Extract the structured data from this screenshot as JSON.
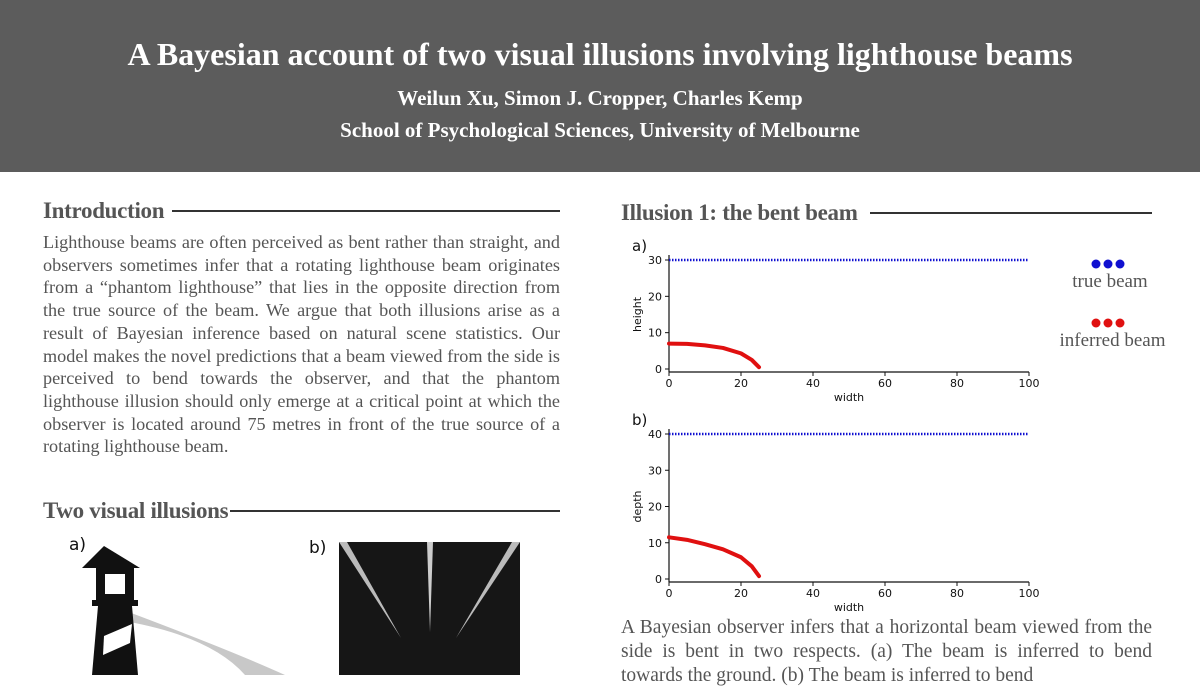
{
  "header": {
    "title": "A Bayesian account of two visual illusions involving lighthouse beams",
    "authors": "Weilun Xu, Simon J. Cropper, Charles Kemp",
    "affiliation": "School of Psychological Sciences, University of Melbourne"
  },
  "intro": {
    "heading": "Introduction",
    "text": "Lighthouse beams are often perceived as bent rather than straight, and observers sometimes infer that a rotating lighthouse beam originates from a “phantom lighthouse” that lies in the opposite direction from the true source of the beam. We argue that both illusions arise as a result of Bayesian inference based on natural scene statistics. Our model makes the novel predictions that a beam viewed from the side is perceived to bend towards the observer, and that the phantom lighthouse illusion should only emerge at a critical point at which the observer is located around 75 metres in front of the true source of a rotating lighthouse beam."
  },
  "illusions": {
    "heading": "Two visual illusions",
    "panel_a": "a)",
    "panel_b": "b)"
  },
  "illusion1": {
    "heading": "Illusion 1: the bent beam",
    "caption": "A Bayesian observer infers that a horizontal beam viewed from the side is bent in two respects. (a) The beam is inferred to bend towards the ground. (b) The beam is inferred to bend"
  },
  "legend": {
    "true": "true beam",
    "inferred": "inferred beam"
  },
  "colors": {
    "true_beam": "#1010d0",
    "inferred_beam": "#e01010",
    "header_bg": "#5c5c5c"
  },
  "chart_data": [
    {
      "type": "line",
      "panel": "a)",
      "xlabel": "width",
      "ylabel": "height",
      "xlim": [
        0,
        100
      ],
      "ylim": [
        0,
        30
      ],
      "xticks": [
        0,
        20,
        40,
        60,
        80,
        100
      ],
      "yticks": [
        0,
        10,
        20,
        30
      ],
      "series": [
        {
          "name": "true beam",
          "style": "dotted",
          "x": [
            0,
            100
          ],
          "y": [
            30,
            30
          ]
        },
        {
          "name": "inferred beam",
          "x": [
            0,
            5,
            10,
            15,
            20,
            23,
            25
          ],
          "y": [
            7,
            6.9,
            6.5,
            5.8,
            4.3,
            2.5,
            0.5
          ]
        }
      ]
    },
    {
      "type": "line",
      "panel": "b)",
      "xlabel": "width",
      "ylabel": "depth",
      "xlim": [
        0,
        100
      ],
      "ylim": [
        0,
        40
      ],
      "xticks": [
        0,
        20,
        40,
        60,
        80,
        100
      ],
      "yticks": [
        0,
        10,
        20,
        30,
        40
      ],
      "series": [
        {
          "name": "true beam",
          "style": "dotted",
          "x": [
            0,
            100
          ],
          "y": [
            40,
            40
          ]
        },
        {
          "name": "inferred beam",
          "x": [
            0,
            5,
            10,
            15,
            20,
            23,
            25
          ],
          "y": [
            11.5,
            10.8,
            9.6,
            8.2,
            6,
            3.5,
            0.8
          ]
        }
      ]
    }
  ]
}
